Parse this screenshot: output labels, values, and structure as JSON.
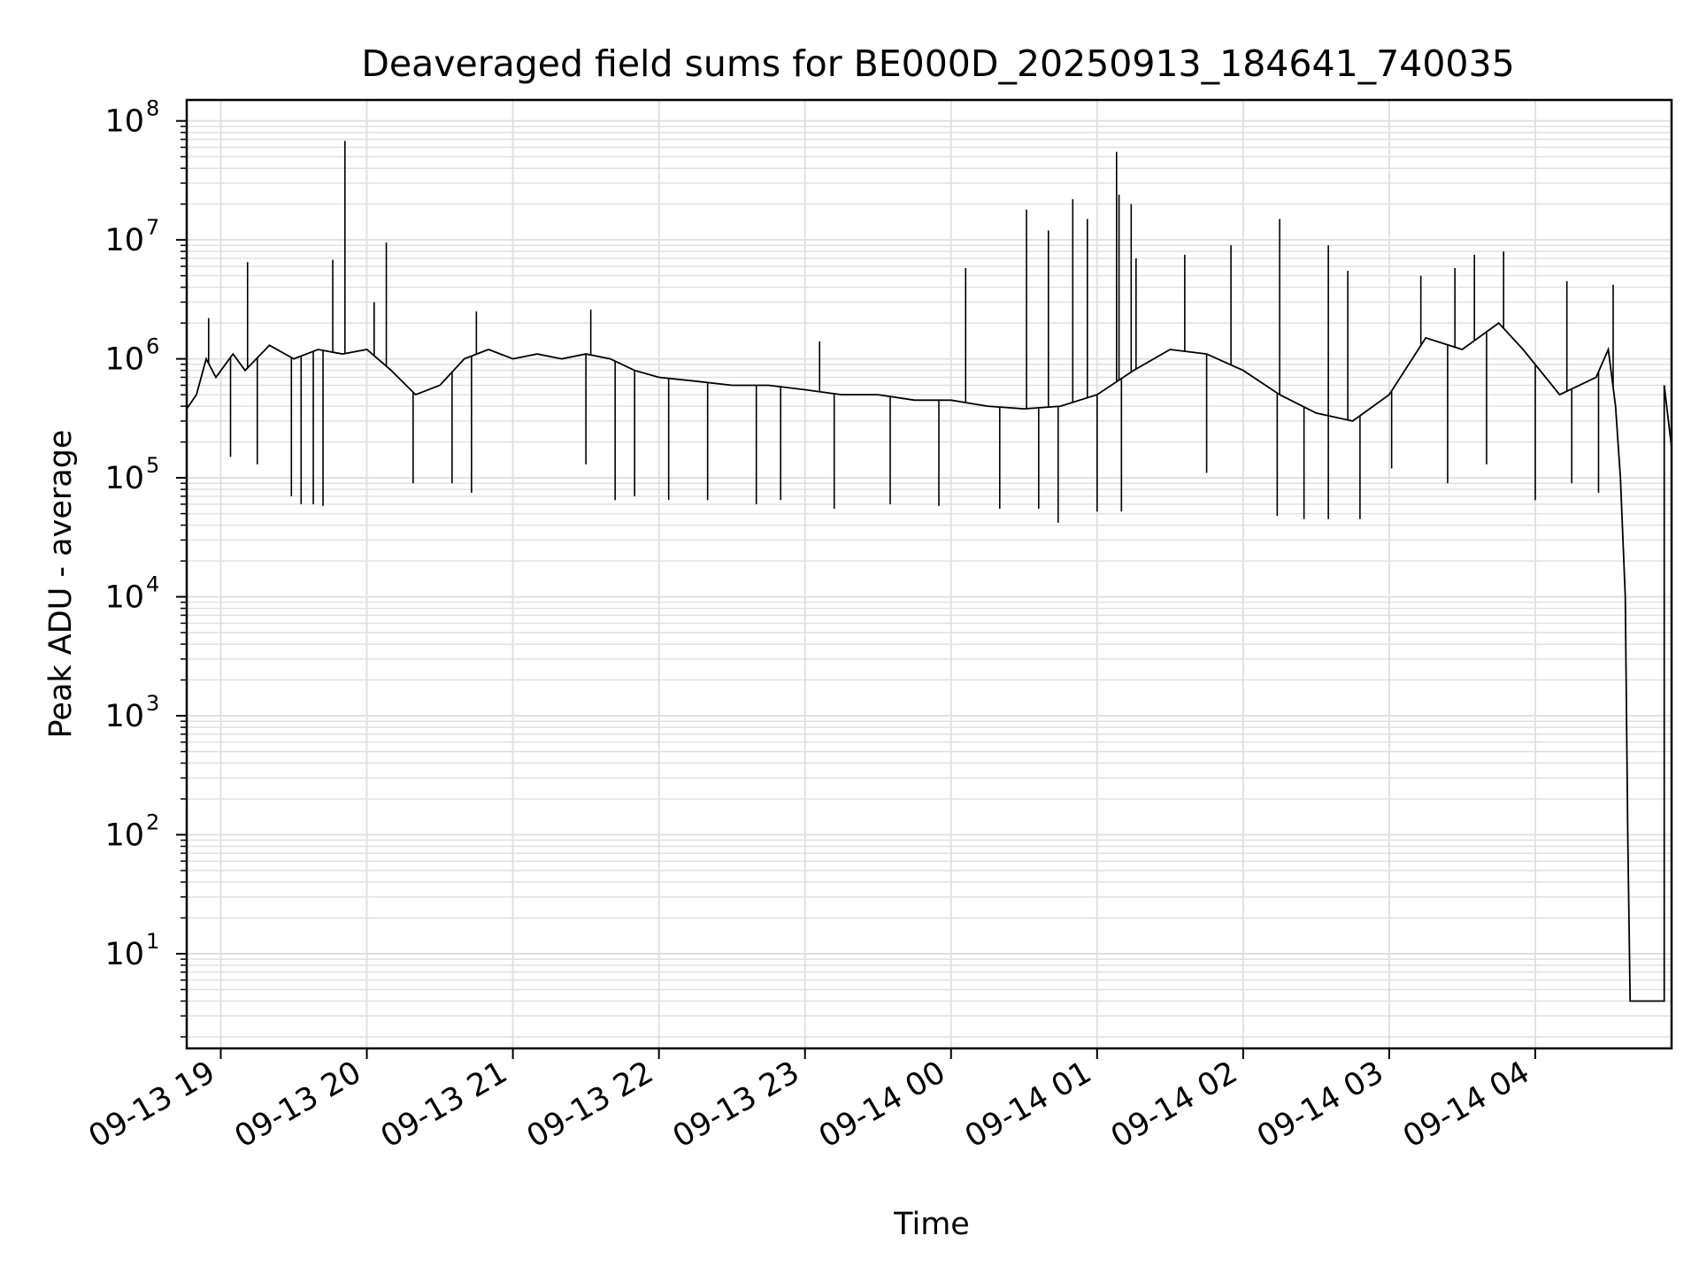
{
  "chart_data": {
    "type": "line",
    "title": "Deaveraged field sums for BE000D_20250913_184641_740035",
    "xlabel": "Time",
    "ylabel": "Peak ADU - average",
    "yscale": "log",
    "ylim": [
      1.6,
      150000000
    ],
    "xlim": [
      "2025-09-13 18:46",
      "2025-09-14 04:56"
    ],
    "grid": true,
    "line_color": "#000000",
    "grid_color": "#e0e0e0",
    "y_ticks": [
      {
        "base": "10",
        "exp": "1",
        "value": 10
      },
      {
        "base": "10",
        "exp": "2",
        "value": 100
      },
      {
        "base": "10",
        "exp": "3",
        "value": 1000
      },
      {
        "base": "10",
        "exp": "4",
        "value": 10000
      },
      {
        "base": "10",
        "exp": "5",
        "value": 100000
      },
      {
        "base": "10",
        "exp": "6",
        "value": 1000000
      },
      {
        "base": "10",
        "exp": "7",
        "value": 10000000
      },
      {
        "base": "10",
        "exp": "8",
        "value": 100000000
      }
    ],
    "x_ticks": [
      {
        "label": "09-13 19",
        "time": "2025-09-13 19:00"
      },
      {
        "label": "09-13 20",
        "time": "2025-09-13 20:00"
      },
      {
        "label": "09-13 21",
        "time": "2025-09-13 21:00"
      },
      {
        "label": "09-13 22",
        "time": "2025-09-13 22:00"
      },
      {
        "label": "09-13 23",
        "time": "2025-09-13 23:00"
      },
      {
        "label": "09-14 00",
        "time": "2025-09-14 00:00"
      },
      {
        "label": "09-14 01",
        "time": "2025-09-14 01:00"
      },
      {
        "label": "09-14 02",
        "time": "2025-09-14 02:00"
      },
      {
        "label": "09-14 03",
        "time": "2025-09-14 03:00"
      },
      {
        "label": "09-14 04",
        "time": "2025-09-14 04:00"
      }
    ],
    "series": [
      {
        "points": [
          [
            "2025-09-13 18:46",
            380000
          ],
          [
            "2025-09-13 18:50",
            500000
          ],
          [
            "2025-09-13 18:54",
            1000000
          ],
          [
            "2025-09-13 18:58",
            700000
          ],
          [
            "2025-09-13 19:05",
            1100000
          ],
          [
            "2025-09-13 19:10",
            800000
          ],
          [
            "2025-09-13 19:20",
            1300000
          ],
          [
            "2025-09-13 19:30",
            1000000
          ],
          [
            "2025-09-13 19:40",
            1200000
          ],
          [
            "2025-09-13 19:50",
            1100000
          ],
          [
            "2025-09-13 20:00",
            1200000
          ],
          [
            "2025-09-13 20:10",
            800000
          ],
          [
            "2025-09-13 20:20",
            500000
          ],
          [
            "2025-09-13 20:30",
            600000
          ],
          [
            "2025-09-13 20:40",
            1000000
          ],
          [
            "2025-09-13 20:50",
            1200000
          ],
          [
            "2025-09-13 21:00",
            1000000
          ],
          [
            "2025-09-13 21:10",
            1100000
          ],
          [
            "2025-09-13 21:20",
            1000000
          ],
          [
            "2025-09-13 21:30",
            1100000
          ],
          [
            "2025-09-13 21:40",
            1000000
          ],
          [
            "2025-09-13 21:50",
            800000
          ],
          [
            "2025-09-13 22:00",
            700000
          ],
          [
            "2025-09-13 22:15",
            650000
          ],
          [
            "2025-09-13 22:30",
            600000
          ],
          [
            "2025-09-13 22:45",
            600000
          ],
          [
            "2025-09-13 23:00",
            550000
          ],
          [
            "2025-09-13 23:15",
            500000
          ],
          [
            "2025-09-13 23:30",
            500000
          ],
          [
            "2025-09-13 23:45",
            450000
          ],
          [
            "2025-09-14 00:00",
            450000
          ],
          [
            "2025-09-14 00:15",
            400000
          ],
          [
            "2025-09-14 00:30",
            380000
          ],
          [
            "2025-09-14 00:45",
            400000
          ],
          [
            "2025-09-14 01:00",
            500000
          ],
          [
            "2025-09-14 01:15",
            800000
          ],
          [
            "2025-09-14 01:30",
            1200000
          ],
          [
            "2025-09-14 01:45",
            1100000
          ],
          [
            "2025-09-14 02:00",
            800000
          ],
          [
            "2025-09-14 02:15",
            500000
          ],
          [
            "2025-09-14 02:30",
            350000
          ],
          [
            "2025-09-14 02:45",
            300000
          ],
          [
            "2025-09-14 03:00",
            500000
          ],
          [
            "2025-09-14 03:15",
            1500000
          ],
          [
            "2025-09-14 03:30",
            1200000
          ],
          [
            "2025-09-14 03:45",
            2000000
          ],
          [
            "2025-09-14 03:55",
            1200000
          ],
          [
            "2025-09-14 04:10",
            500000
          ],
          [
            "2025-09-14 04:25",
            700000
          ],
          [
            "2025-09-14 04:30",
            1200000
          ],
          [
            "2025-09-14 04:33",
            400000
          ],
          [
            "2025-09-14 04:35",
            100000
          ],
          [
            "2025-09-14 04:37",
            10000
          ],
          [
            "2025-09-14 04:38",
            100
          ],
          [
            "2025-09-14 04:39",
            4
          ],
          [
            "2025-09-14 04:53",
            4
          ],
          [
            "2025-09-14 04:53",
            600000
          ],
          [
            "2025-09-14 04:56",
            180000
          ]
        ]
      }
    ],
    "spikes": [
      [
        "2025-09-13 18:55",
        2200000
      ],
      [
        "2025-09-13 19:11",
        6500000
      ],
      [
        "2025-09-13 19:46",
        6800000
      ],
      [
        "2025-09-13 19:51",
        68000000
      ],
      [
        "2025-09-13 20:03",
        3000000
      ],
      [
        "2025-09-13 20:08",
        9500000
      ],
      [
        "2025-09-13 20:45",
        2500000
      ],
      [
        "2025-09-13 21:32",
        2600000
      ],
      [
        "2025-09-13 23:06",
        1400000
      ],
      [
        "2025-09-14 00:06",
        5800000
      ],
      [
        "2025-09-14 00:31",
        18000000
      ],
      [
        "2025-09-14 00:40",
        12000000
      ],
      [
        "2025-09-14 00:50",
        22000000
      ],
      [
        "2025-09-14 00:56",
        15000000
      ],
      [
        "2025-09-14 01:08",
        55000000
      ],
      [
        "2025-09-14 01:09",
        24000000
      ],
      [
        "2025-09-14 01:14",
        20000000
      ],
      [
        "2025-09-14 01:16",
        7000000
      ],
      [
        "2025-09-14 01:36",
        7500000
      ],
      [
        "2025-09-14 01:55",
        9000000
      ],
      [
        "2025-09-14 02:15",
        15000000
      ],
      [
        "2025-09-14 02:35",
        9000000
      ],
      [
        "2025-09-14 02:43",
        5500000
      ],
      [
        "2025-09-14 03:13",
        5000000
      ],
      [
        "2025-09-14 03:27",
        5800000
      ],
      [
        "2025-09-14 03:35",
        7500000
      ],
      [
        "2025-09-14 03:47",
        8000000
      ],
      [
        "2025-09-14 04:13",
        4500000
      ],
      [
        "2025-09-14 04:32",
        4200000
      ]
    ],
    "dips": [
      [
        "2025-09-13 19:04",
        150000
      ],
      [
        "2025-09-13 19:15",
        130000
      ],
      [
        "2025-09-13 19:29",
        70000
      ],
      [
        "2025-09-13 19:33",
        60000
      ],
      [
        "2025-09-13 19:38",
        60000
      ],
      [
        "2025-09-13 19:42",
        58000
      ],
      [
        "2025-09-13 20:19",
        90000
      ],
      [
        "2025-09-13 20:35",
        90000
      ],
      [
        "2025-09-13 20:43",
        75000
      ],
      [
        "2025-09-13 21:30",
        130000
      ],
      [
        "2025-09-13 21:42",
        65000
      ],
      [
        "2025-09-13 21:50",
        70000
      ],
      [
        "2025-09-13 22:04",
        65000
      ],
      [
        "2025-09-13 22:20",
        65000
      ],
      [
        "2025-09-13 22:40",
        60000
      ],
      [
        "2025-09-13 22:50",
        65000
      ],
      [
        "2025-09-13 23:12",
        55000
      ],
      [
        "2025-09-13 23:35",
        60000
      ],
      [
        "2025-09-13 23:55",
        58000
      ],
      [
        "2025-09-14 00:20",
        55000
      ],
      [
        "2025-09-14 00:36",
        55000
      ],
      [
        "2025-09-14 00:44",
        42000
      ],
      [
        "2025-09-14 01:00",
        52000
      ],
      [
        "2025-09-14 01:10",
        52000
      ],
      [
        "2025-09-14 01:45",
        110000
      ],
      [
        "2025-09-14 02:14",
        48000
      ],
      [
        "2025-09-14 02:25",
        45000
      ],
      [
        "2025-09-14 02:35",
        45000
      ],
      [
        "2025-09-14 02:48",
        45000
      ],
      [
        "2025-09-14 03:01",
        120000
      ],
      [
        "2025-09-14 03:24",
        90000
      ],
      [
        "2025-09-14 03:40",
        130000
      ],
      [
        "2025-09-14 04:00",
        65000
      ],
      [
        "2025-09-14 04:15",
        90000
      ],
      [
        "2025-09-14 04:26",
        75000
      ]
    ]
  }
}
